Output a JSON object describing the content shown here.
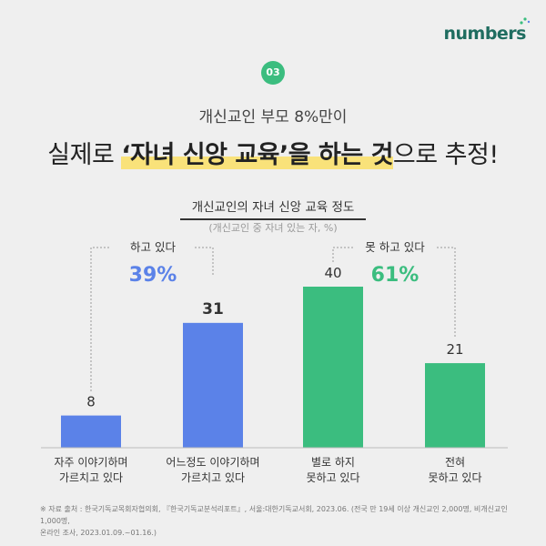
{
  "brand": {
    "logo_text": "numbers"
  },
  "header": {
    "badge": "03",
    "subtitle": "개신교인 부모 8%만이",
    "headline_pre": "실제로 ",
    "headline_highlight": "‘자녀 신앙 교육’을 하는 것",
    "headline_post": "으로 추정!"
  },
  "chart_data": {
    "type": "bar",
    "title": "개신교인의 자녀 신앙 교육 정도",
    "subtitle": "(개신교인 중 자녀 있는 자, %)",
    "categories": [
      [
        "자주 이야기하며",
        "가르치고 있다"
      ],
      [
        "어느정도 이야기하며",
        "가르치고 있다"
      ],
      [
        "별로 하지",
        "못하고 있다"
      ],
      [
        "전혀",
        "못하고 있다"
      ]
    ],
    "values": [
      8,
      31,
      40,
      21
    ],
    "colors": [
      "#5b82e8",
      "#5b82e8",
      "#3bbd7f",
      "#3bbd7f"
    ],
    "groups": [
      {
        "label": "하고 있다",
        "value": "39%",
        "color": "#5b82e8"
      },
      {
        "label": "못 하고 있다",
        "value": "61%",
        "color": "#3bbd7f"
      }
    ],
    "ylim": [
      0,
      40
    ]
  },
  "footnote": {
    "line1": "※ 자료 출처 : 한국기독교목회자협의회, 『한국기독교분석리포트』, 서울:대한기독교서회, 2023.06. (전국 만 19세 이상 개신교인 2,000명, 비개신교인 1,000명,",
    "line2": "온라인 조사, 2023.01.09.~01.16.)"
  }
}
